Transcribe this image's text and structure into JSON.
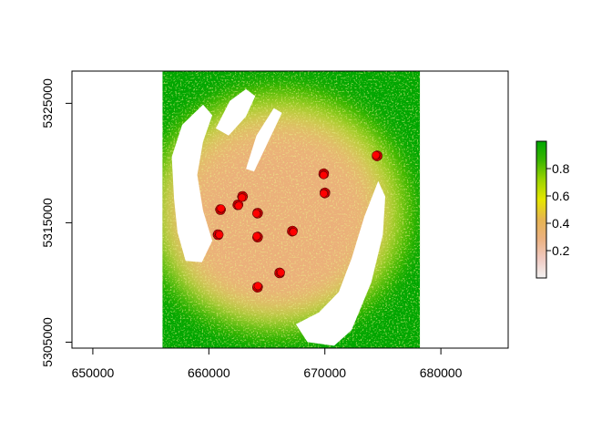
{
  "chart_data": {
    "type": "heatmap",
    "title": "",
    "xlabel": "",
    "ylabel": "",
    "xlim": [
      648200,
      685800
    ],
    "ylim": [
      5304500,
      5327700
    ],
    "x_ticks": [
      650000,
      660000,
      670000,
      680000
    ],
    "x_tick_labels": [
      "650000",
      "660000",
      "670000",
      "680000"
    ],
    "y_ticks": [
      5305000,
      5315000,
      5325000
    ],
    "y_tick_labels": [
      "5305000",
      "5315000",
      "5325000"
    ],
    "raster_extent": {
      "xmin": 656000,
      "xmax": 678200,
      "ymin": 5304500,
      "ymax": 5327700
    },
    "legend": {
      "placement": "right",
      "range": [
        0.0,
        1.0
      ],
      "ticks": [
        0.2,
        0.4,
        0.6,
        0.8
      ],
      "tick_labels": [
        "0.2",
        "0.4",
        "0.6",
        "0.8"
      ],
      "colors": [
        "#f2f2f2",
        "#f0c9c0",
        "#ebb180",
        "#e6b450",
        "#e6e600",
        "#9ed500",
        "#3db600",
        "#00a600"
      ]
    },
    "lakes": [
      {
        "points": [
          [
            659500,
            5324900
          ],
          [
            657700,
            5323200
          ],
          [
            656800,
            5320500
          ],
          [
            657000,
            5317000
          ],
          [
            657300,
            5314200
          ],
          [
            658000,
            5311800
          ],
          [
            659400,
            5311700
          ],
          [
            660300,
            5313500
          ],
          [
            659500,
            5316000
          ],
          [
            659000,
            5319000
          ],
          [
            659500,
            5321800
          ],
          [
            660300,
            5324000
          ]
        ]
      },
      {
        "points": [
          [
            674600,
            5318500
          ],
          [
            675200,
            5317200
          ],
          [
            675000,
            5314000
          ],
          [
            674000,
            5310000
          ],
          [
            672300,
            5306000
          ],
          [
            670800,
            5304700
          ],
          [
            668500,
            5305000
          ],
          [
            667500,
            5306500
          ],
          [
            669500,
            5307500
          ],
          [
            671200,
            5309200
          ],
          [
            672300,
            5312000
          ],
          [
            673400,
            5315500
          ]
        ]
      },
      {
        "points": [
          [
            663200,
            5326200
          ],
          [
            664000,
            5325600
          ],
          [
            663200,
            5323900
          ],
          [
            661700,
            5322300
          ],
          [
            660600,
            5322900
          ],
          [
            661800,
            5325200
          ]
        ]
      },
      {
        "points": [
          [
            666300,
            5324200
          ],
          [
            665600,
            5324600
          ],
          [
            664100,
            5322300
          ],
          [
            663200,
            5319500
          ],
          [
            663900,
            5319300
          ]
        ]
      }
    ],
    "points_series": {
      "name": "",
      "color": "#ff0000",
      "points": [
        {
          "x": 661000,
          "y": 5316100
        },
        {
          "x": 660800,
          "y": 5314000
        },
        {
          "x": 662500,
          "y": 5316500
        },
        {
          "x": 662900,
          "y": 5317200
        },
        {
          "x": 664200,
          "y": 5315800
        },
        {
          "x": 664200,
          "y": 5313800
        },
        {
          "x": 664200,
          "y": 5309600
        },
        {
          "x": 666100,
          "y": 5310800
        },
        {
          "x": 667200,
          "y": 5314300
        },
        {
          "x": 669900,
          "y": 5319100
        },
        {
          "x": 670000,
          "y": 5317500
        },
        {
          "x": 674500,
          "y": 5320600
        }
      ]
    }
  }
}
